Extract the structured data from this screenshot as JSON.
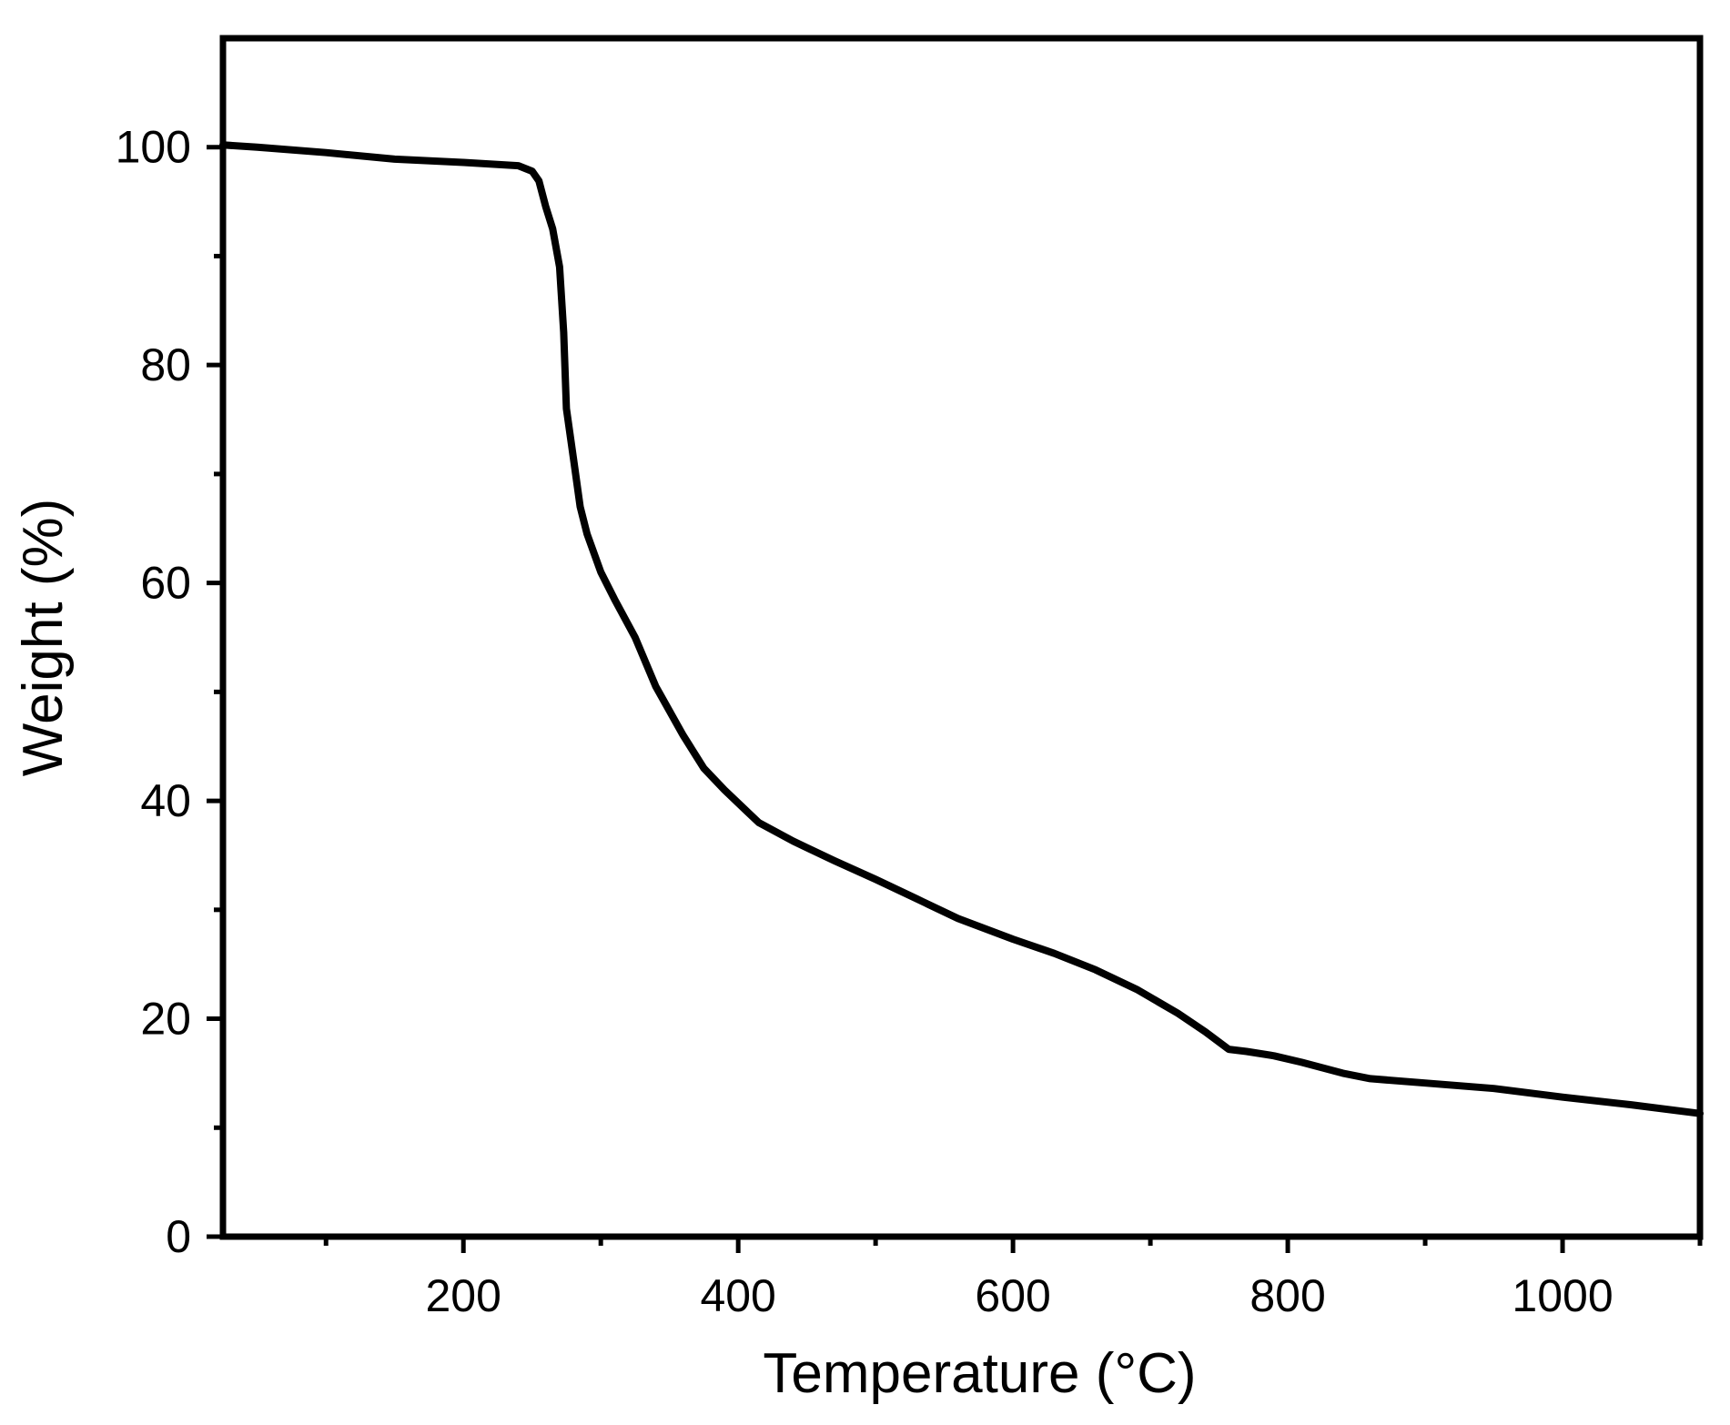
{
  "chart_data": {
    "type": "line",
    "title": "",
    "xlabel": "Temperature (°C)",
    "ylabel": "Weight (%)",
    "xlim": [
      25,
      1100
    ],
    "ylim": [
      0,
      110
    ],
    "x_ticks": [
      200,
      400,
      600,
      800,
      1000
    ],
    "x_tick_labels": [
      "200",
      "400",
      "600",
      "800",
      "1000"
    ],
    "x_minor_ticks": [
      100,
      300,
      500,
      700,
      900,
      1100
    ],
    "y_ticks": [
      0,
      20,
      40,
      60,
      80,
      100
    ],
    "y_tick_labels": [
      "0",
      "20",
      "40",
      "60",
      "80",
      "100"
    ],
    "y_minor_ticks": [
      10,
      30,
      50,
      70,
      90
    ],
    "grid": false,
    "legend": "none",
    "line_color": "#000000",
    "series": [
      {
        "x": [
          25,
          50,
          100,
          150,
          200,
          240,
          250,
          255,
          260,
          265,
          270,
          273,
          275,
          280,
          285,
          290,
          300,
          310,
          325,
          340,
          360,
          375,
          390,
          405,
          415,
          440,
          470,
          500,
          530,
          560,
          600,
          630,
          660,
          690,
          720,
          740,
          757,
          770,
          790,
          810,
          840,
          860,
          900,
          950,
          1000,
          1050,
          1100
        ],
        "y": [
          100.2,
          100,
          99.5,
          98.9,
          98.6,
          98.3,
          97.8,
          96.9,
          94.5,
          92.5,
          89,
          83,
          76,
          71.5,
          67,
          64.5,
          61,
          58.5,
          55,
          50.5,
          46,
          43,
          41,
          39.2,
          38,
          36.3,
          34.5,
          32.8,
          31,
          29.2,
          27.3,
          26,
          24.5,
          22.7,
          20.5,
          18.8,
          17.2,
          17,
          16.6,
          16,
          15,
          14.5,
          14.1,
          13.6,
          12.8,
          12.1,
          11.3
        ]
      }
    ]
  }
}
